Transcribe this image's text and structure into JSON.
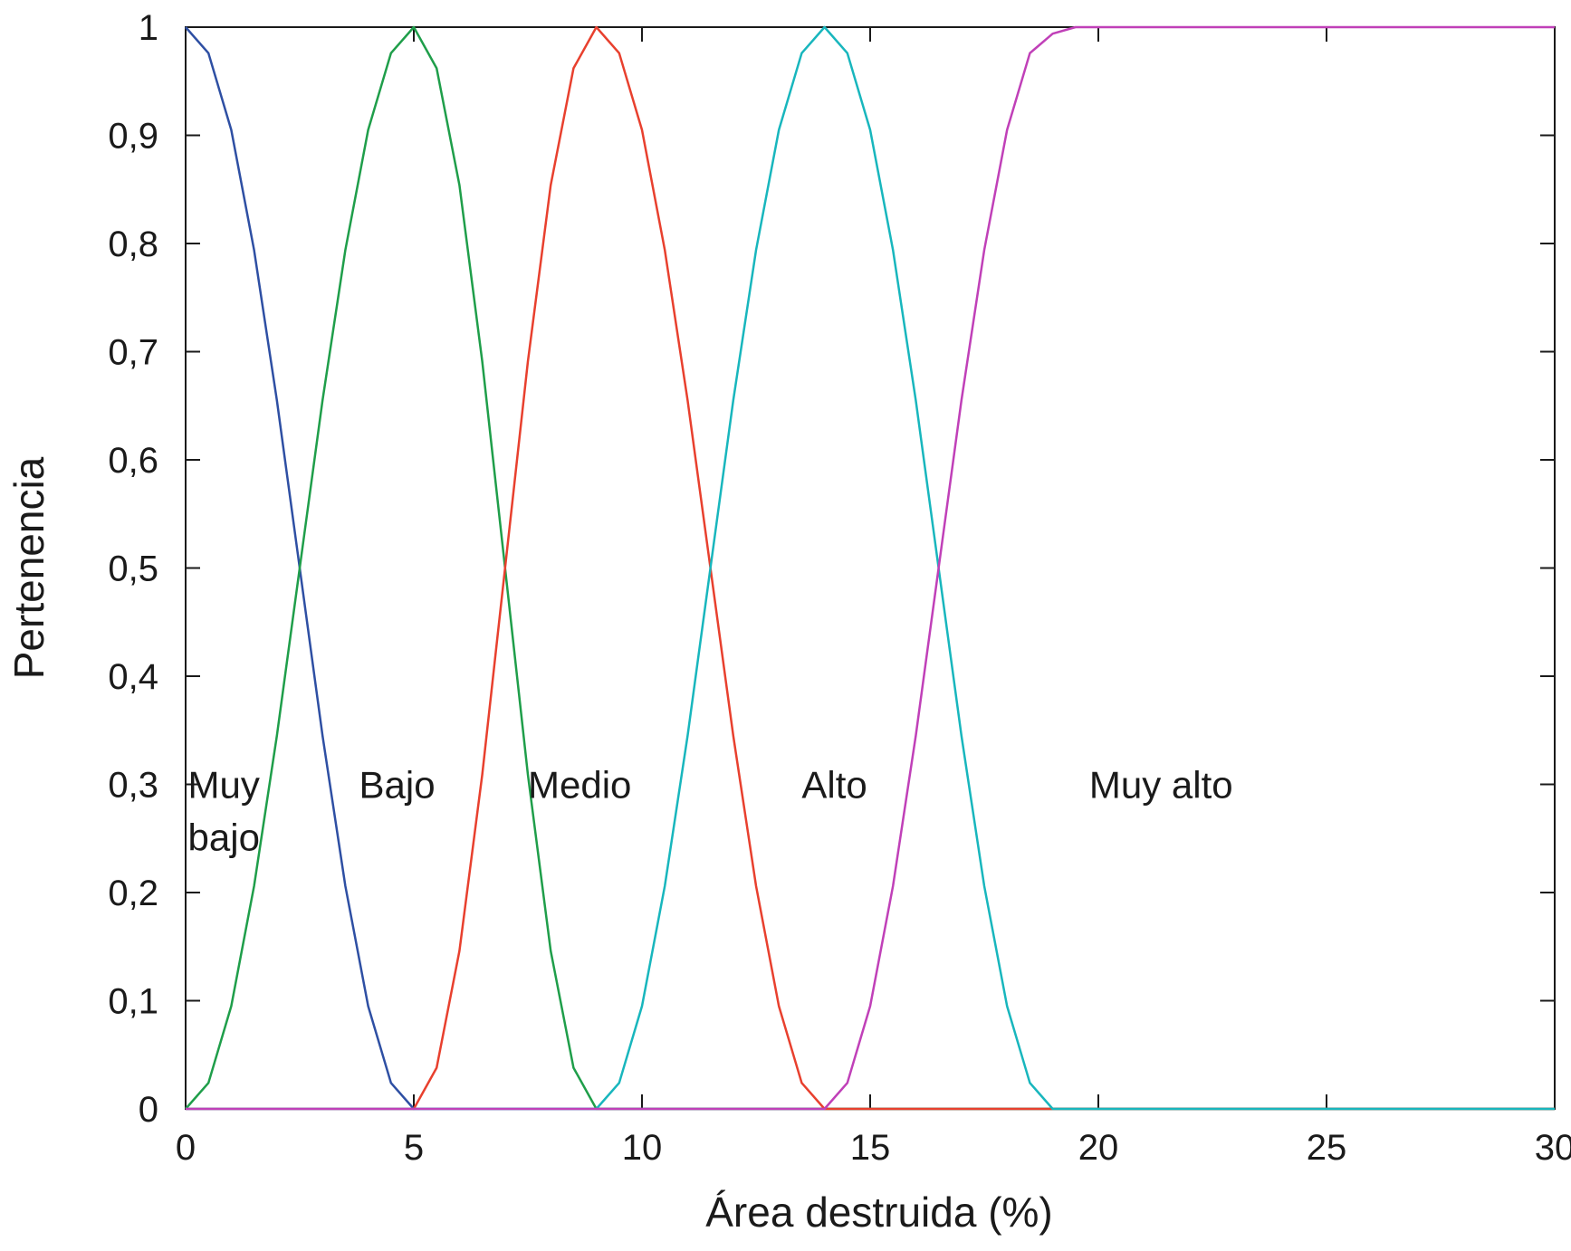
{
  "chart_data": {
    "type": "line",
    "xlabel": "Área destruida (%)",
    "ylabel": "Pertenencia",
    "xlim": [
      0,
      30
    ],
    "ylim": [
      0,
      1
    ],
    "x_ticks": [
      "0",
      "5",
      "10",
      "15",
      "20",
      "25",
      "30"
    ],
    "y_ticks": [
      "0",
      "0,1",
      "0,2",
      "0,3",
      "0,4",
      "0,5",
      "0,6",
      "0,7",
      "0,8",
      "0,9",
      "1"
    ],
    "grid": false,
    "series": [
      {
        "name": "Muy bajo",
        "color": "#2e4fa3",
        "x": [
          0,
          0.5,
          1,
          1.5,
          2,
          2.5,
          3,
          3.5,
          4,
          4.5,
          5,
          30
        ],
        "y": [
          1,
          0.976,
          0.905,
          0.794,
          0.655,
          0.5,
          0.345,
          0.206,
          0.095,
          0.024,
          0,
          0
        ]
      },
      {
        "name": "Bajo",
        "color": "#1f9e4a",
        "x": [
          0,
          0.5,
          1,
          1.5,
          2,
          2.5,
          3,
          3.5,
          4,
          4.5,
          5,
          5.5,
          6,
          6.5,
          7,
          7.5,
          8,
          8.5,
          9,
          30
        ],
        "y": [
          0,
          0.024,
          0.095,
          0.206,
          0.345,
          0.5,
          0.655,
          0.794,
          0.905,
          0.976,
          1,
          0.962,
          0.854,
          0.691,
          0.5,
          0.309,
          0.146,
          0.038,
          0,
          0
        ]
      },
      {
        "name": "Medio",
        "color": "#e8402e",
        "x": [
          0,
          5,
          5.5,
          6,
          6.5,
          7,
          7.5,
          8,
          8.5,
          9,
          9.5,
          10,
          10.5,
          11,
          11.5,
          12,
          12.5,
          13,
          13.5,
          14,
          30
        ],
        "y": [
          0,
          0,
          0.038,
          0.146,
          0.309,
          0.5,
          0.691,
          0.854,
          0.962,
          1,
          0.976,
          0.905,
          0.794,
          0.655,
          0.5,
          0.345,
          0.206,
          0.095,
          0.024,
          0,
          0
        ]
      },
      {
        "name": "Alto",
        "color": "#18b6bd",
        "x": [
          0,
          9,
          9.5,
          10,
          10.5,
          11,
          11.5,
          12,
          12.5,
          13,
          13.5,
          14,
          14.5,
          15,
          15.5,
          16,
          16.5,
          17,
          17.5,
          18,
          18.5,
          19,
          19.5,
          20,
          30
        ],
        "y": [
          0,
          0,
          0.024,
          0.095,
          0.206,
          0.345,
          0.5,
          0.655,
          0.794,
          0.905,
          0.976,
          1,
          0.976,
          0.905,
          0.794,
          0.655,
          0.5,
          0.345,
          0.206,
          0.095,
          0.024,
          0,
          0,
          0,
          0
        ]
      },
      {
        "name": "Muy alto",
        "color": "#c040b8",
        "x": [
          0,
          14,
          14.5,
          15,
          15.5,
          16,
          16.5,
          17,
          17.5,
          18,
          18.5,
          19,
          19.5,
          20,
          30
        ],
        "y": [
          0,
          0,
          0.024,
          0.095,
          0.206,
          0.345,
          0.5,
          0.655,
          0.794,
          0.905,
          0.976,
          0.994,
          1,
          1,
          1
        ]
      }
    ],
    "labels": [
      {
        "lines": [
          "Muy",
          "bajo"
        ],
        "x": 0.05,
        "y": 0.3
      },
      {
        "lines": [
          "Bajo"
        ],
        "x": 3.8,
        "y": 0.3
      },
      {
        "lines": [
          "Medio"
        ],
        "x": 7.5,
        "y": 0.3
      },
      {
        "lines": [
          "Alto"
        ],
        "x": 13.5,
        "y": 0.3
      },
      {
        "lines": [
          "Muy alto"
        ],
        "x": 19.8,
        "y": 0.3
      }
    ]
  }
}
